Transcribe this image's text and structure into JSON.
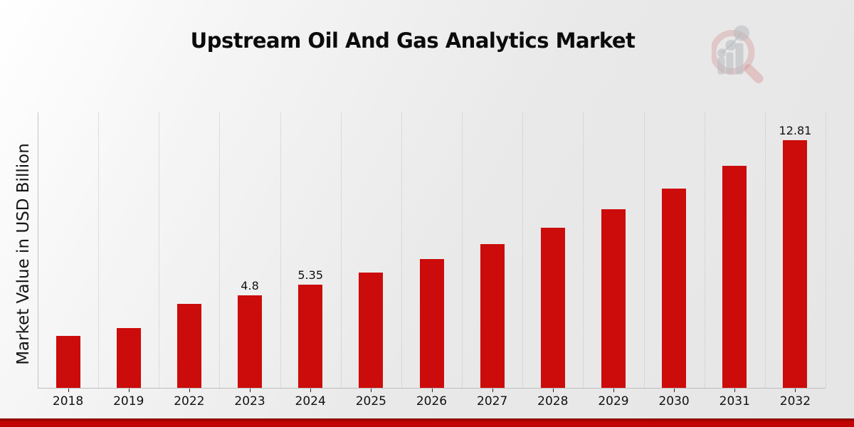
{
  "page": {
    "title": "Upstream Oil And Gas Analytics Market"
  },
  "branding": {
    "logo": "magnifier-bar-chart-logo",
    "logo_ring_color": "#d98a8a",
    "logo_bars_color": "#9aa0a8",
    "footer_band_color": "#c30404"
  },
  "chart_data": {
    "type": "bar",
    "title": "Upstream Oil And Gas Analytics Market",
    "xlabel": "",
    "ylabel": "Market Value in USD Billion",
    "categories": [
      "2018",
      "2019",
      "2022",
      "2023",
      "2024",
      "2025",
      "2026",
      "2027",
      "2028",
      "2029",
      "2030",
      "2031",
      "2032"
    ],
    "values": [
      2.7,
      3.1,
      4.35,
      4.8,
      5.35,
      5.97,
      6.66,
      7.42,
      8.28,
      9.23,
      10.3,
      11.48,
      12.81
    ],
    "bar_labels": [
      "",
      "",
      "",
      "4.8",
      "5.35",
      "",
      "",
      "",
      "",
      "",
      "",
      "",
      "12.81"
    ],
    "bar_color": "#cc0b0b",
    "ylim": [
      0,
      14.25
    ],
    "grid": "vertical-dotted-at-category-boundaries",
    "legend": "none"
  }
}
